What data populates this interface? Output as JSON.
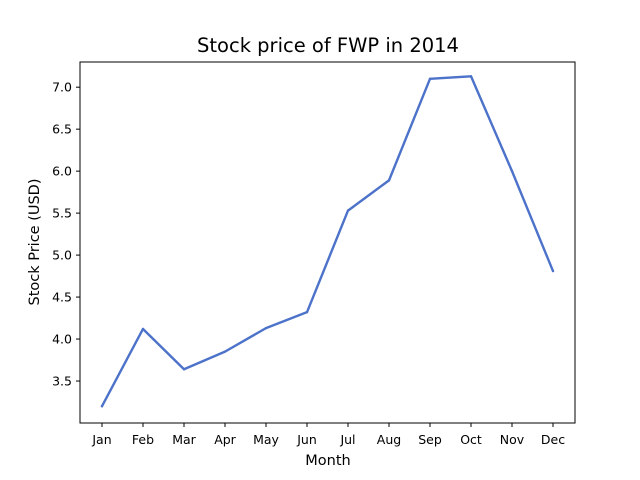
{
  "chart_data": {
    "type": "line",
    "title": "Stock price of FWP in 2014",
    "xlabel": "Month",
    "ylabel": "Stock Price (USD)",
    "categories": [
      "Jan",
      "Feb",
      "Mar",
      "Apr",
      "May",
      "Jun",
      "Jul",
      "Aug",
      "Sep",
      "Oct",
      "Nov",
      "Dec"
    ],
    "series": [
      {
        "values": [
          3.2,
          4.12,
          3.64,
          3.85,
          4.13,
          4.32,
          5.53,
          5.89,
          7.1,
          7.13,
          6.0,
          4.81
        ],
        "color": "#4c72c9"
      }
    ],
    "yticks": [
      3.5,
      4.0,
      4.5,
      5.0,
      5.5,
      6.0,
      6.5,
      7.0
    ],
    "ytick_labels": [
      "3.5",
      "4.0",
      "4.5",
      "5.0",
      "5.5",
      "6.0",
      "6.5",
      "7.0"
    ],
    "ylim": [
      3.0,
      7.3
    ],
    "grid": false,
    "legend": false
  }
}
